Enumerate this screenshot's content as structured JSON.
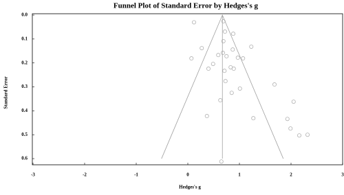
{
  "chart_data": {
    "type": "scatter",
    "title": "Funnel Plot of Standard Error by Hedges's g",
    "x_label": "Hedges's g",
    "y_label": "Standard Error",
    "xlim": [
      -3,
      3
    ],
    "xticks": [
      -3,
      -2,
      -1,
      0,
      1,
      2,
      3
    ],
    "ylim": [
      0,
      0.62
    ],
    "y_inverted": true,
    "yticks": [
      {
        "value": 0,
        "label": "0.0"
      },
      {
        "value": 0.1,
        "label": "0.1"
      },
      {
        "value": 0.2,
        "label": "0.2"
      },
      {
        "value": 0.3,
        "label": "0.3"
      },
      {
        "value": 0.4,
        "label": "0.4"
      },
      {
        "value": 0.5,
        "label": "0.5"
      },
      {
        "value": 0.6,
        "label": "0.6"
      }
    ],
    "series": [
      {
        "type": "scatter",
        "color": "#b0b0b0",
        "x": [
          0.12,
          0.69,
          0.72,
          0.88,
          0.69,
          1.23,
          0.27,
          0.87,
          0.59,
          0.68,
          0.97,
          0.75,
          0.07,
          1.07,
          0.49,
          0.83,
          0.89,
          0.4,
          0.71,
          0.73,
          1.01,
          1.68,
          0.85,
          0.63,
          2.05,
          0.37,
          1.27,
          1.93,
          1.99,
          2.16,
          2.32,
          0.65
        ],
        "values": [
          0.03,
          0.026,
          0.069,
          0.078,
          0.109,
          0.132,
          0.138,
          0.144,
          0.167,
          0.158,
          0.178,
          0.172,
          0.181,
          0.181,
          0.204,
          0.218,
          0.224,
          0.224,
          0.233,
          0.276,
          0.307,
          0.29,
          0.325,
          0.356,
          0.362,
          0.422,
          0.431,
          0.434,
          0.474,
          0.503,
          0.5,
          0.612
        ]
      },
      {
        "type": "line",
        "color": "#a0a0a0",
        "x": [
          -0.51,
          0.67,
          1.85
        ],
        "values": [
          0.6,
          0,
          0.6
        ]
      },
      {
        "type": "line",
        "color": "#a0a0a0",
        "x": [
          0.67,
          0.67
        ],
        "values": [
          0,
          0.6
        ]
      }
    ]
  }
}
